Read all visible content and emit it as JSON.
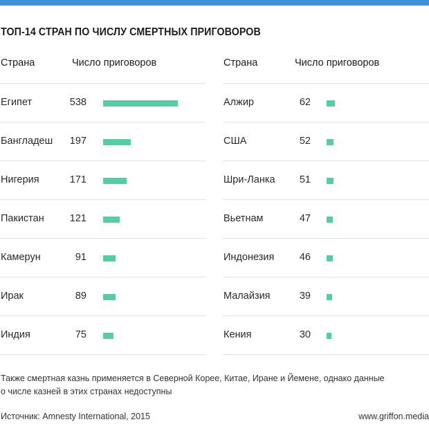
{
  "chart_data": {
    "type": "table",
    "title": "ТОП-14 СТРАН ПО ЧИСЛУ СМЕРТНЫХ ПРИГОВОРОВ",
    "columns": [
      "Страна",
      "Число приговоров"
    ],
    "max_value": 538,
    "left": [
      {
        "country": "Египет",
        "value": 538
      },
      {
        "country": "Бангладеш",
        "value": 197
      },
      {
        "country": "Нигерия",
        "value": 171
      },
      {
        "country": "Пакистан",
        "value": 121
      },
      {
        "country": "Камерун",
        "value": 91
      },
      {
        "country": "Ирак",
        "value": 89
      },
      {
        "country": "Индия",
        "value": 75
      }
    ],
    "right": [
      {
        "country": "Алжир",
        "value": 62
      },
      {
        "country": "США",
        "value": 52
      },
      {
        "country": "Шри-Ланка",
        "value": 51
      },
      {
        "country": "Вьетнам",
        "value": 47
      },
      {
        "country": "Индонезия",
        "value": 46
      },
      {
        "country": "Малайзия",
        "value": 39
      },
      {
        "country": "Кения",
        "value": 30
      }
    ],
    "bar_color": "#4fd0a6"
  },
  "note": "Также смертная казнь применяется в Северной Корее, Китае, Иране и Йемене, однако данные о числе казней в этих странах недоступны",
  "source": "Источник: Amnesty International, 2015",
  "site": "www.griffon.media",
  "accent_color": "#3d8fd8"
}
